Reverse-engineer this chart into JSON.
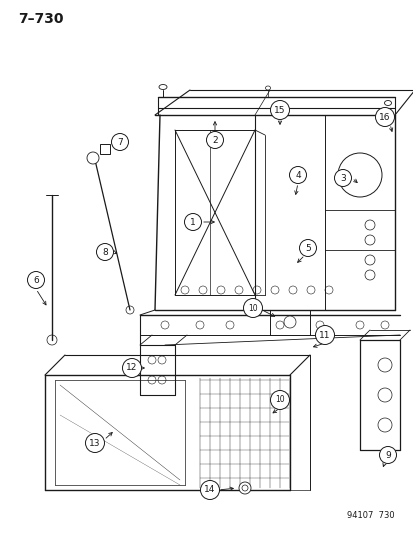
{
  "page_label": "7–730",
  "footer_code": "94107  730",
  "background_color": "#ffffff",
  "line_color": "#1a1a1a",
  "label_font_size": 7,
  "page_label_font_size": 10
}
